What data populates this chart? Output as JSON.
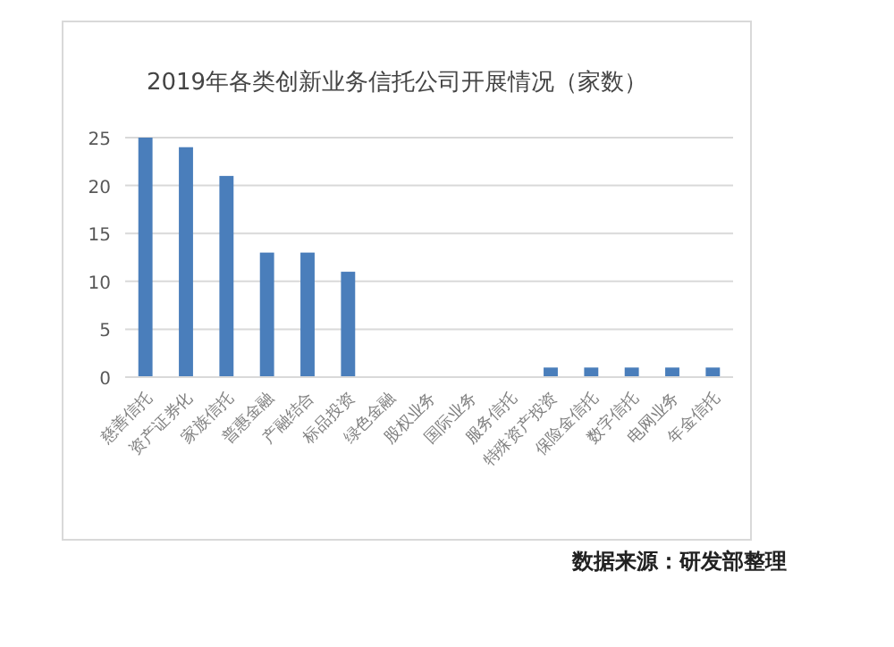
{
  "chart_data": {
    "type": "bar",
    "title": "2019年各类创新业务信托公司开展情况（家数）",
    "categories": [
      "慈善信托",
      "资产证券化",
      "家族信托",
      "普惠金融",
      "产融结合",
      "标品投资",
      "绿色金融",
      "股权业务",
      "国际业务",
      "服务信托",
      "特殊资产投资",
      "保险金信托",
      "数字信托",
      "电网业务",
      "年金信托"
    ],
    "values": [
      25,
      24,
      21,
      13,
      13,
      11,
      null,
      null,
      null,
      null,
      1,
      1,
      1,
      1,
      1
    ],
    "color": "#4a7ebb",
    "ylim": [
      0,
      25
    ],
    "yticks": [
      0,
      5,
      10,
      15,
      20,
      25
    ],
    "grid": "y",
    "annotations": [
      "数据来源：研发部整理"
    ]
  }
}
